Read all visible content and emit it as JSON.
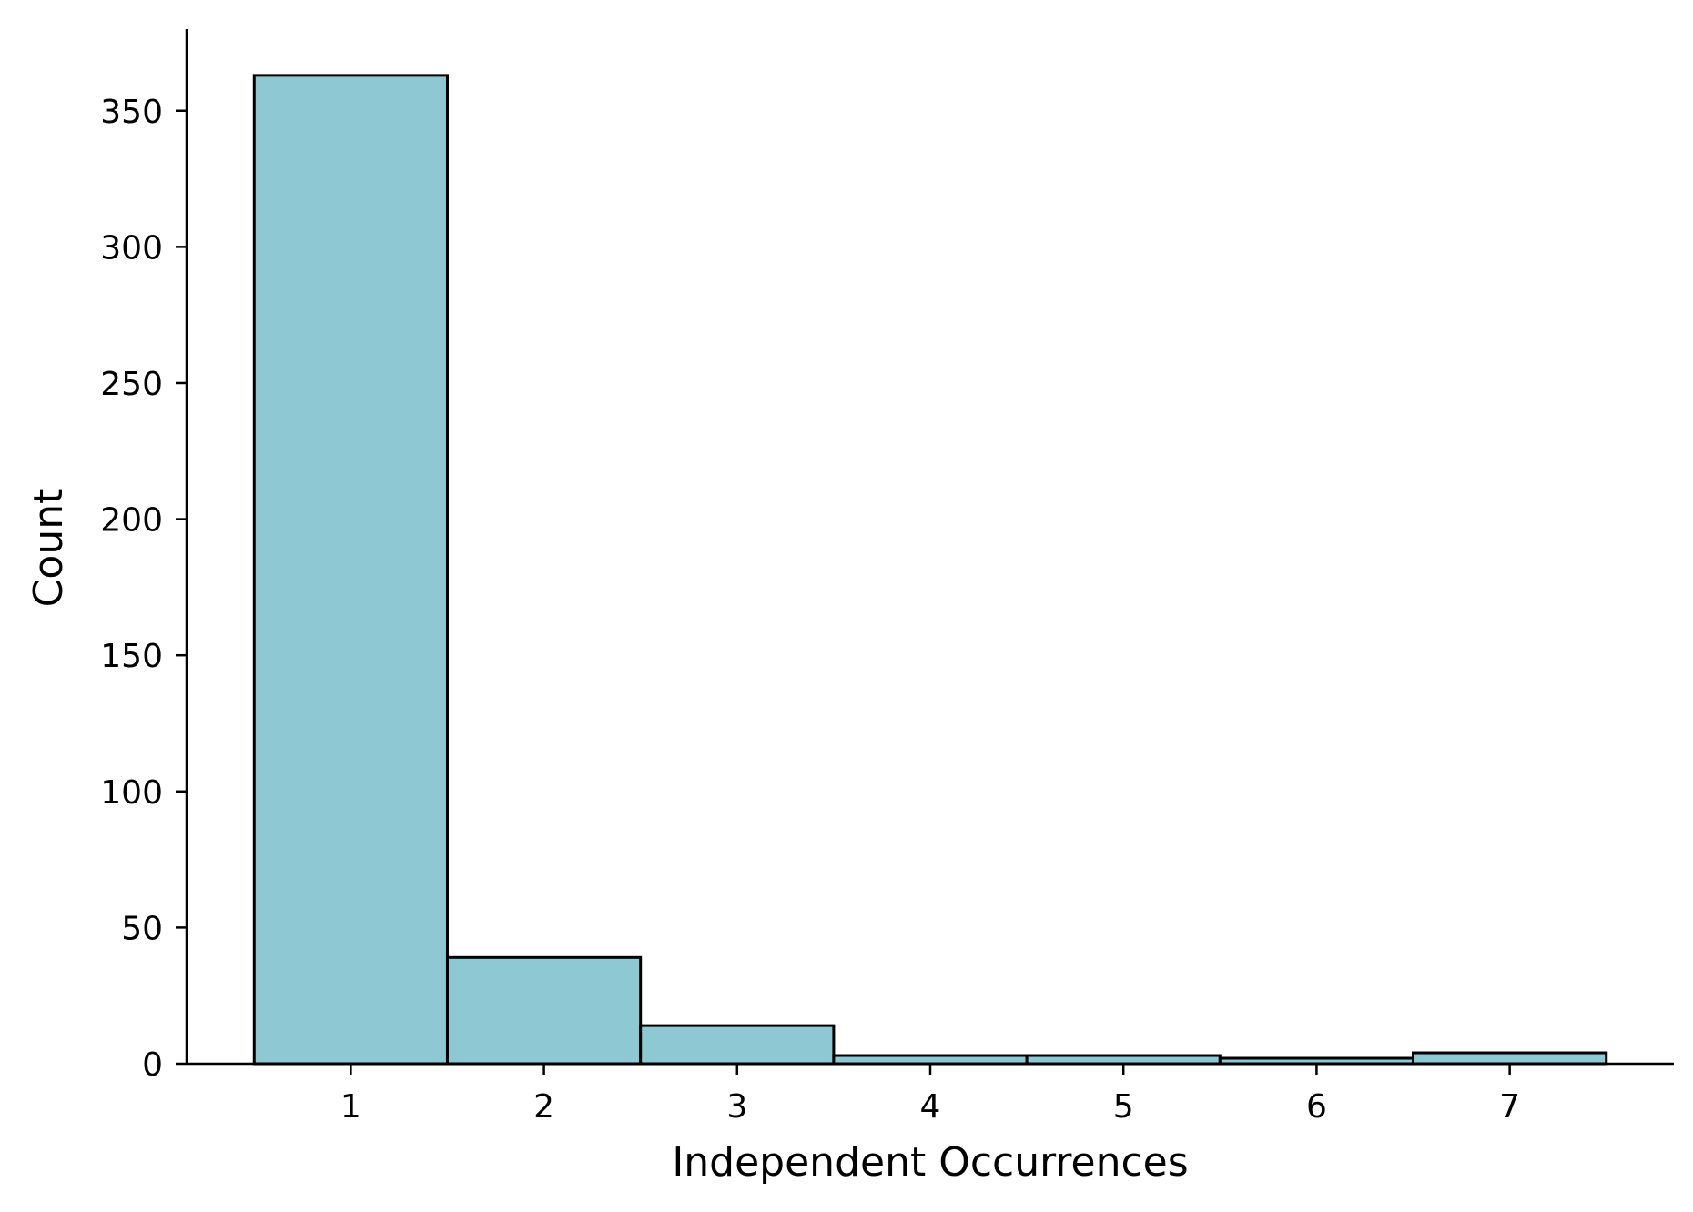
{
  "chart_data": {
    "type": "bar",
    "subtype": "histogram",
    "title": "",
    "xlabel": "Independent Occurrences",
    "ylabel": "Count",
    "categories": [
      "1",
      "2",
      "3",
      "4",
      "5",
      "6",
      "7"
    ],
    "x": [
      1,
      2,
      3,
      4,
      5,
      6,
      7
    ],
    "values": [
      363,
      39,
      14,
      3,
      3,
      2,
      4
    ],
    "xlim": [
      0.15,
      7.85
    ],
    "ylim": [
      0,
      380
    ],
    "xticks": [
      1,
      2,
      3,
      4,
      5,
      6,
      7
    ],
    "yticks": [
      0,
      50,
      100,
      150,
      200,
      250,
      300,
      350
    ],
    "grid": false,
    "legend": "none",
    "colors": {
      "bar_fill": "#8dc8d3",
      "bar_edge": "#000000",
      "axis": "#000000"
    }
  }
}
